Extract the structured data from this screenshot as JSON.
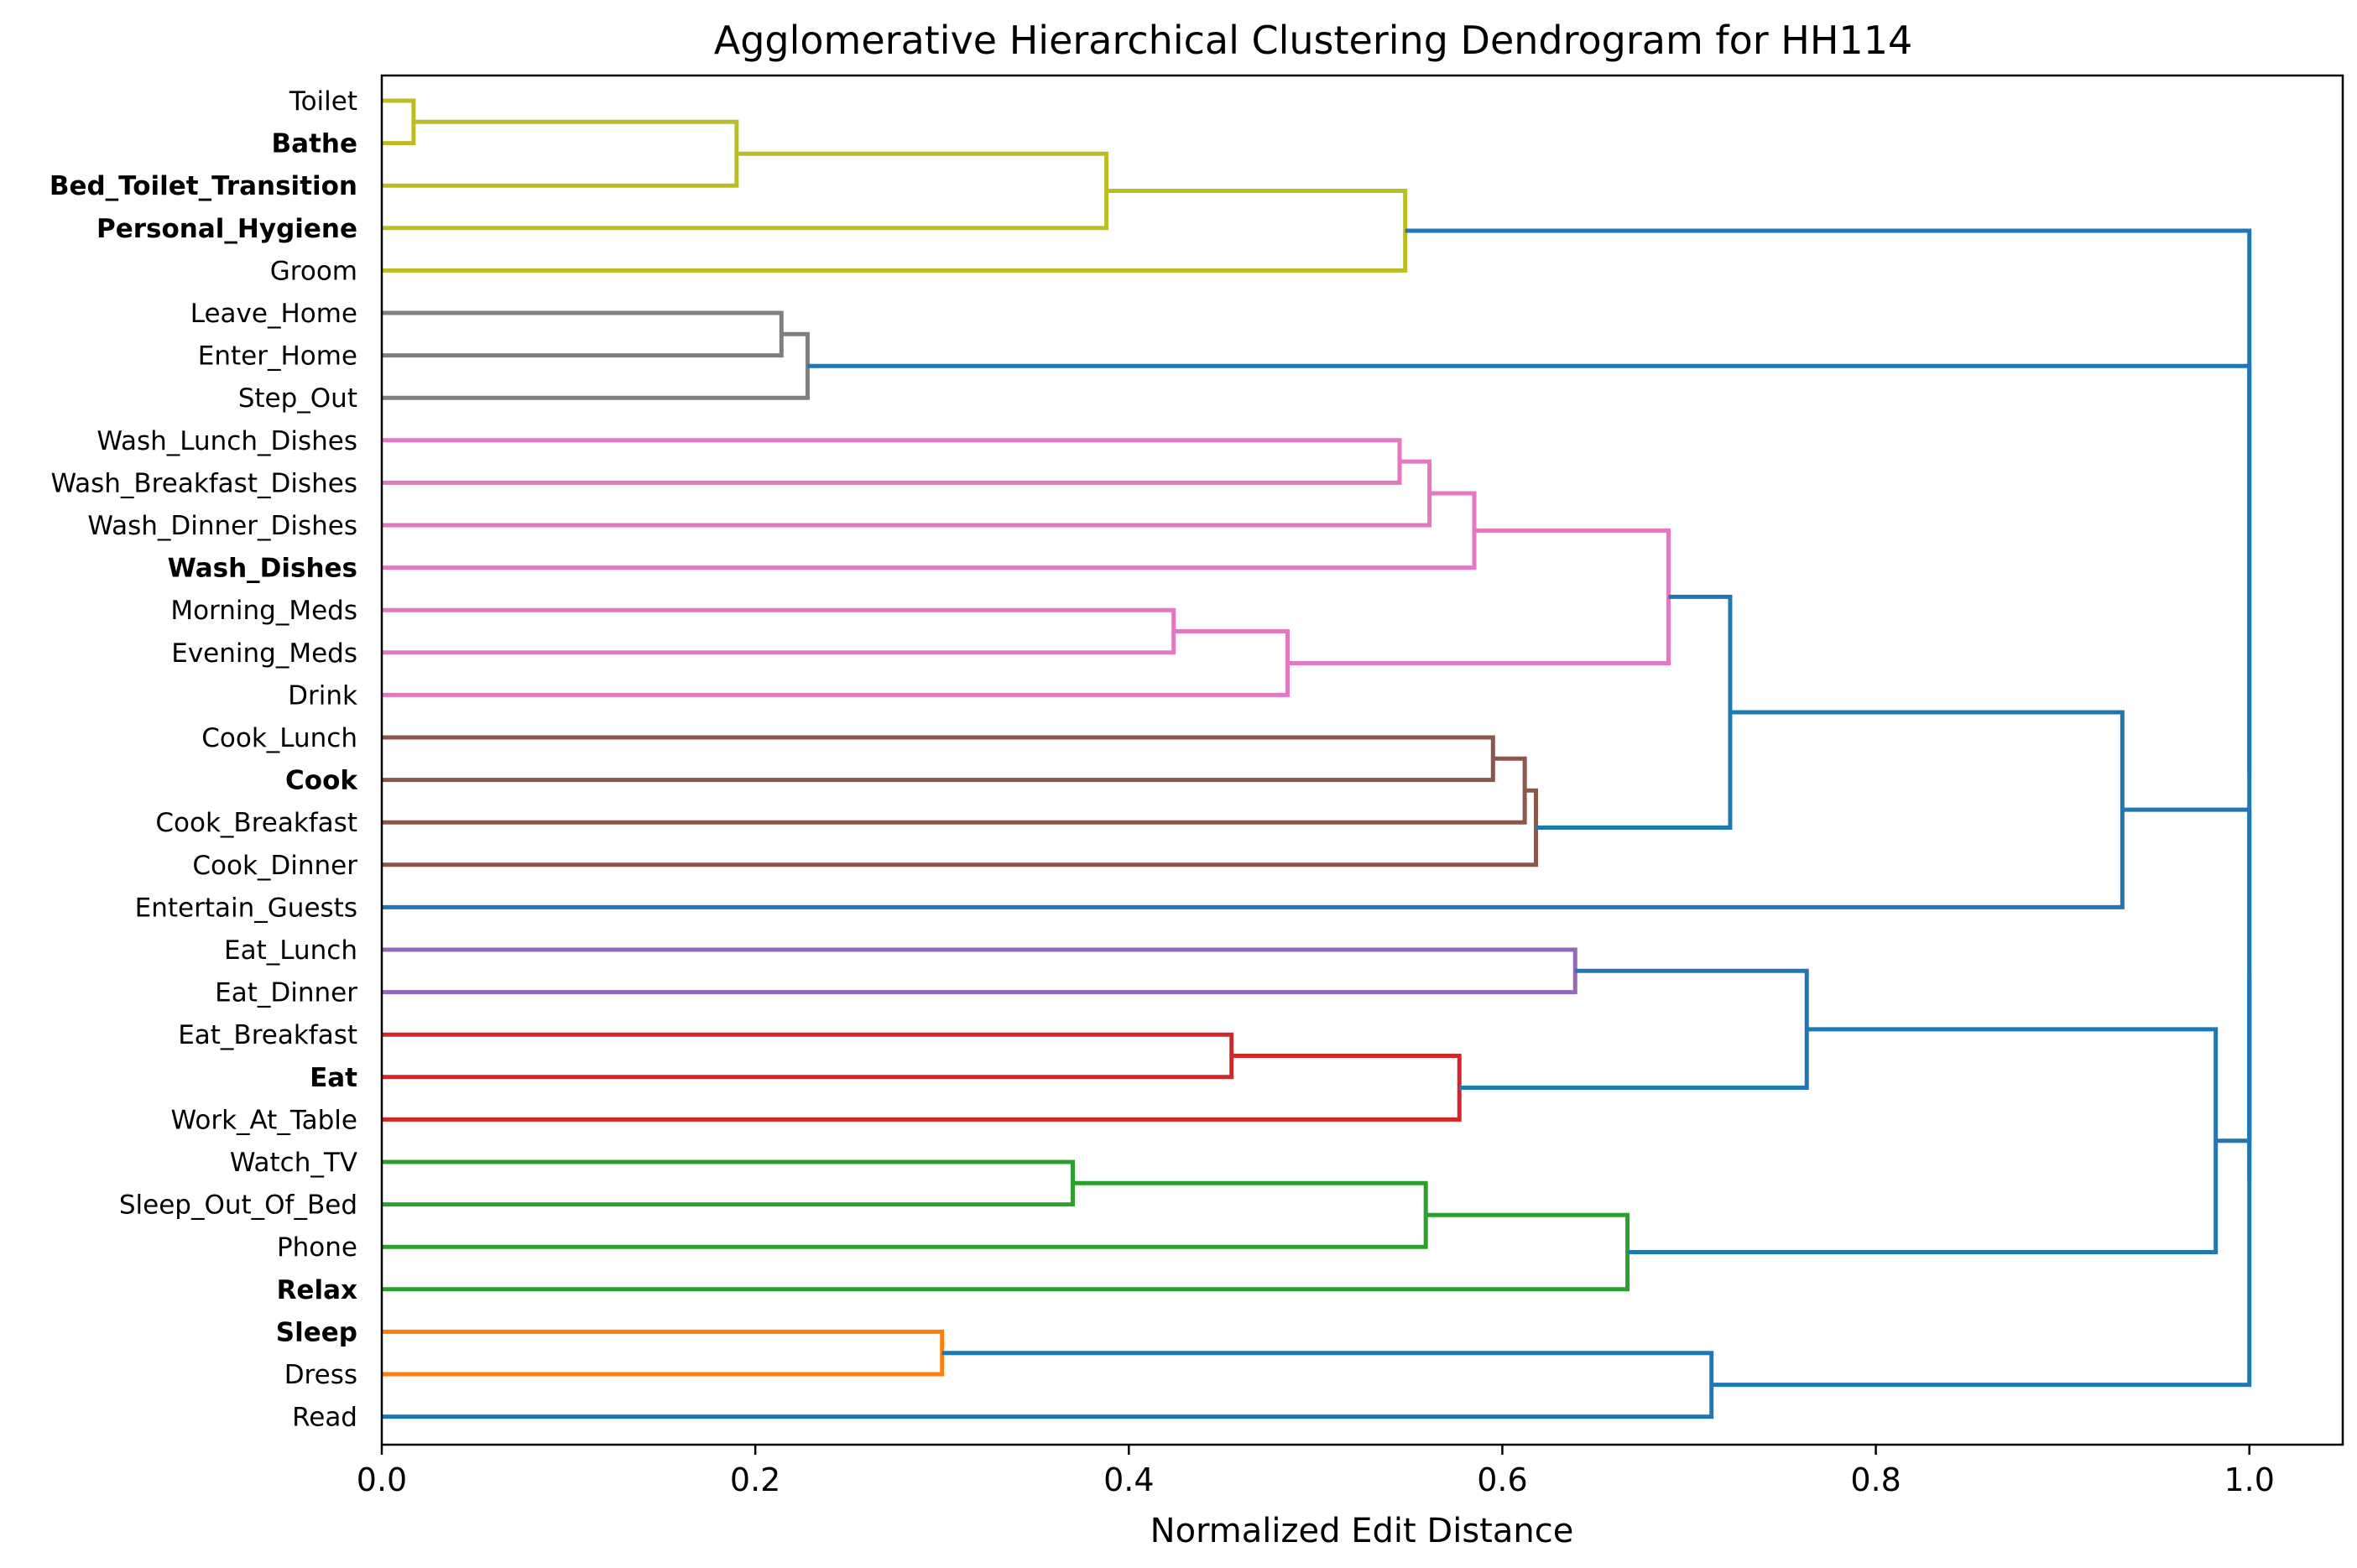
{
  "chart_data": {
    "type": "dendrogram",
    "title": "Agglomerative Hierarchical Clustering Dendrogram for HH114",
    "xlabel": "Normalized Edit Distance",
    "ylabel": "",
    "xlim": [
      0,
      1.05
    ],
    "xticks": [
      0.0,
      0.2,
      0.4,
      0.6,
      0.8,
      1.0
    ],
    "xtick_labels": [
      "0.0",
      "0.2",
      "0.4",
      "0.6",
      "0.8",
      "1.0"
    ],
    "orientation": "horizontal, leaves on left",
    "colors": {
      "above_threshold": "#1f77b4",
      "yellow": "#bcbd22",
      "gray": "#7f7f7f",
      "pink": "#e377c2",
      "brown": "#8c564b",
      "purple": "#9467bd",
      "red": "#d62728",
      "green": "#2ca02c",
      "orange": "#ff7f0e"
    },
    "leaves": [
      {
        "label": "Toilet",
        "bold": false
      },
      {
        "label": "Bathe",
        "bold": true
      },
      {
        "label": "Bed_Toilet_Transition",
        "bold": true
      },
      {
        "label": "Personal_Hygiene",
        "bold": true
      },
      {
        "label": "Groom",
        "bold": false
      },
      {
        "label": "Leave_Home",
        "bold": false
      },
      {
        "label": "Enter_Home",
        "bold": false
      },
      {
        "label": "Step_Out",
        "bold": false
      },
      {
        "label": "Wash_Lunch_Dishes",
        "bold": false
      },
      {
        "label": "Wash_Breakfast_Dishes",
        "bold": false
      },
      {
        "label": "Wash_Dinner_Dishes",
        "bold": false
      },
      {
        "label": "Wash_Dishes",
        "bold": true
      },
      {
        "label": "Morning_Meds",
        "bold": false
      },
      {
        "label": "Evening_Meds",
        "bold": false
      },
      {
        "label": "Drink",
        "bold": false
      },
      {
        "label": "Cook_Lunch",
        "bold": false
      },
      {
        "label": "Cook",
        "bold": true
      },
      {
        "label": "Cook_Breakfast",
        "bold": false
      },
      {
        "label": "Cook_Dinner",
        "bold": false
      },
      {
        "label": "Entertain_Guests",
        "bold": false
      },
      {
        "label": "Eat_Lunch",
        "bold": false
      },
      {
        "label": "Eat_Dinner",
        "bold": false
      },
      {
        "label": "Eat_Breakfast",
        "bold": false
      },
      {
        "label": "Eat",
        "bold": true
      },
      {
        "label": "Work_At_Table",
        "bold": false
      },
      {
        "label": "Watch_TV",
        "bold": false
      },
      {
        "label": "Sleep_Out_Of_Bed",
        "bold": false
      },
      {
        "label": "Phone",
        "bold": false
      },
      {
        "label": "Relax",
        "bold": true
      },
      {
        "label": "Sleep",
        "bold": true
      },
      {
        "label": "Dress",
        "bold": false
      },
      {
        "label": "Read",
        "bold": false
      }
    ],
    "merges": [
      {
        "id": "A",
        "children": [
          "L0",
          "L1"
        ],
        "distance": 0.017,
        "color": "yellow"
      },
      {
        "id": "B",
        "children": [
          "A",
          "L2"
        ],
        "distance": 0.19,
        "color": "yellow"
      },
      {
        "id": "C",
        "children": [
          "B",
          "L3"
        ],
        "distance": 0.388,
        "color": "yellow"
      },
      {
        "id": "D",
        "children": [
          "C",
          "L4"
        ],
        "distance": 0.548,
        "color": "yellow"
      },
      {
        "id": "E",
        "children": [
          "L5",
          "L6"
        ],
        "distance": 0.214,
        "color": "gray"
      },
      {
        "id": "F",
        "children": [
          "E",
          "L7"
        ],
        "distance": 0.228,
        "color": "gray"
      },
      {
        "id": "G",
        "children": [
          "L8",
          "L9"
        ],
        "distance": 0.545,
        "color": "pink"
      },
      {
        "id": "H",
        "children": [
          "G",
          "L10"
        ],
        "distance": 0.561,
        "color": "pink"
      },
      {
        "id": "I",
        "children": [
          "H",
          "L11"
        ],
        "distance": 0.585,
        "color": "pink"
      },
      {
        "id": "J",
        "children": [
          "L12",
          "L13"
        ],
        "distance": 0.424,
        "color": "pink"
      },
      {
        "id": "K",
        "children": [
          "J",
          "L14"
        ],
        "distance": 0.485,
        "color": "pink"
      },
      {
        "id": "M",
        "children": [
          "I",
          "K"
        ],
        "distance": 0.689,
        "color": "pink"
      },
      {
        "id": "N",
        "children": [
          "L15",
          "L16"
        ],
        "distance": 0.595,
        "color": "brown"
      },
      {
        "id": "O",
        "children": [
          "N",
          "L17"
        ],
        "distance": 0.612,
        "color": "brown"
      },
      {
        "id": "P",
        "children": [
          "O",
          "L18"
        ],
        "distance": 0.618,
        "color": "brown"
      },
      {
        "id": "Q",
        "children": [
          "M",
          "P"
        ],
        "distance": 0.722,
        "color": "above_threshold"
      },
      {
        "id": "R",
        "children": [
          "Q",
          "L19"
        ],
        "distance": 0.932,
        "color": "above_threshold"
      },
      {
        "id": "S",
        "children": [
          "L20",
          "L21"
        ],
        "distance": 0.639,
        "color": "purple"
      },
      {
        "id": "T",
        "children": [
          "L22",
          "L23"
        ],
        "distance": 0.455,
        "color": "red"
      },
      {
        "id": "U",
        "children": [
          "T",
          "L24"
        ],
        "distance": 0.577,
        "color": "red"
      },
      {
        "id": "V",
        "children": [
          "S",
          "U"
        ],
        "distance": 0.763,
        "color": "above_threshold"
      },
      {
        "id": "W",
        "children": [
          "L25",
          "L26"
        ],
        "distance": 0.37,
        "color": "green"
      },
      {
        "id": "X",
        "children": [
          "W",
          "L27"
        ],
        "distance": 0.559,
        "color": "green"
      },
      {
        "id": "Y",
        "children": [
          "X",
          "L28"
        ],
        "distance": 0.667,
        "color": "green"
      },
      {
        "id": "Z",
        "children": [
          "V",
          "Y"
        ],
        "distance": 0.982,
        "color": "above_threshold"
      },
      {
        "id": "AA",
        "children": [
          "L29",
          "L30"
        ],
        "distance": 0.3,
        "color": "orange"
      },
      {
        "id": "AB",
        "children": [
          "AA",
          "L31"
        ],
        "distance": 0.712,
        "color": "above_threshold"
      },
      {
        "id": "AC",
        "children": [
          "R",
          "Z"
        ],
        "distance": 1.0,
        "color": "above_threshold"
      },
      {
        "id": "AD",
        "children": [
          "AC",
          "AB"
        ],
        "distance": 1.0,
        "color": "above_threshold"
      },
      {
        "id": "AE",
        "children": [
          "F",
          "AD"
        ],
        "distance": 1.0,
        "color": "above_threshold"
      },
      {
        "id": "AF",
        "children": [
          "D",
          "AE"
        ],
        "distance": 1.0,
        "color": "above_threshold"
      }
    ]
  }
}
